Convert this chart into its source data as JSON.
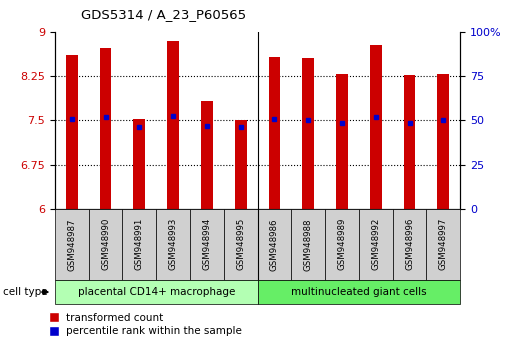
{
  "title": "GDS5314 / A_23_P60565",
  "samples": [
    "GSM948987",
    "GSM948990",
    "GSM948991",
    "GSM948993",
    "GSM948994",
    "GSM948995",
    "GSM948986",
    "GSM948988",
    "GSM948989",
    "GSM948992",
    "GSM948996",
    "GSM948997"
  ],
  "bar_tops": [
    8.6,
    8.72,
    7.52,
    8.85,
    7.82,
    7.5,
    8.58,
    8.55,
    8.28,
    8.78,
    8.27,
    8.29
  ],
  "bar_bottoms": [
    6.0,
    6.0,
    6.0,
    6.0,
    6.0,
    6.0,
    6.0,
    6.0,
    6.0,
    6.0,
    6.0,
    6.0
  ],
  "percentile_values": [
    7.52,
    7.56,
    7.38,
    7.58,
    7.4,
    7.38,
    7.53,
    7.51,
    7.45,
    7.55,
    7.45,
    7.51
  ],
  "groups": [
    {
      "label": "placental CD14+ macrophage",
      "start": 0,
      "end": 5,
      "color": "#b3ffb3"
    },
    {
      "label": "multinucleated giant cells",
      "start": 6,
      "end": 11,
      "color": "#66ee66"
    }
  ],
  "ylim": [
    6.0,
    9.0
  ],
  "yticks_left": [
    6.0,
    6.75,
    7.5,
    8.25,
    9.0
  ],
  "yticks_left_labels": [
    "6",
    "6.75",
    "7.5",
    "8.25",
    "9"
  ],
  "yticks_right": [
    0,
    25,
    50,
    75,
    100
  ],
  "yticks_right_labels": [
    "0",
    "25",
    "50",
    "75",
    "100%"
  ],
  "bar_color": "#cc0000",
  "marker_color": "#0000cc",
  "legend_labels": [
    "transformed count",
    "percentile rank within the sample"
  ],
  "cell_type_label": "cell type",
  "group_separator": 5.5
}
